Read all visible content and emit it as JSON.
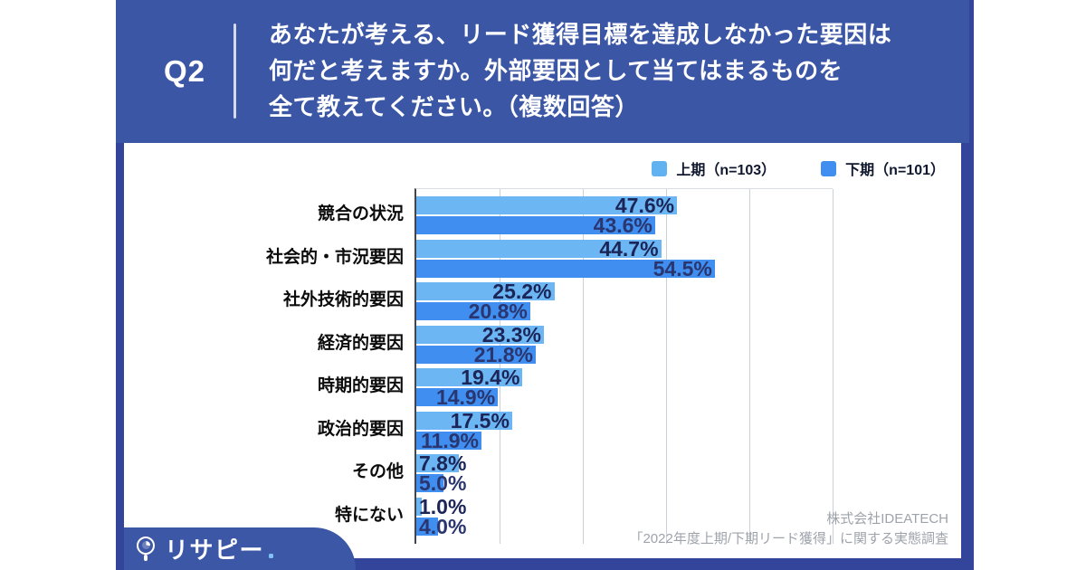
{
  "header": {
    "q_label": "Q2",
    "question_lines": [
      "あなたが考える、リード獲得目標を達成しなかった要因は",
      "何だと考えますか。外部要因として当てはまるものを",
      "全て教えてください。（複数回答）"
    ]
  },
  "legend": {
    "items": [
      {
        "label": "上期（n=103）",
        "color": "#62B2F1"
      },
      {
        "label": "下期（n=101）",
        "color": "#3F8EF0"
      }
    ]
  },
  "chart_data": {
    "type": "bar",
    "orientation": "horizontal",
    "categories": [
      "競合の状況",
      "社会的・市況要因",
      "社外技術的要因",
      "経済的要因",
      "時期的要因",
      "政治的要因",
      "その他",
      "特にない"
    ],
    "series": [
      {
        "name": "上期",
        "n": 103,
        "color": "#6CB6F3",
        "label_color": "#1B2557",
        "values": [
          47.6,
          44.7,
          25.2,
          23.3,
          19.4,
          17.5,
          7.8,
          1.0
        ]
      },
      {
        "name": "下期",
        "n": 101,
        "color": "#3F8EF0",
        "label_color": "#2A366F",
        "values": [
          43.6,
          54.5,
          20.8,
          21.8,
          14.9,
          11.9,
          5.0,
          4.0
        ]
      }
    ],
    "value_suffix": "%",
    "xlim": [
      0,
      76
    ],
    "gridlines_at": [
      15.2,
      30.4,
      45.6,
      60.8,
      76
    ],
    "grid": "vertical",
    "legend_position": "top-right",
    "value_labels": "at-bar-end"
  },
  "source": {
    "line1": "株式会社IDEATECH",
    "line2": "「2022年度上期/下期リード獲得」に関する実態調査"
  },
  "brand": {
    "name": "リサピー"
  },
  "colors": {
    "frame": "#32459A",
    "header": "#3C56A6",
    "badge": "#3D57A7",
    "card": "#FFFFFF",
    "category_text": "#0B0B0B",
    "legend_text": "#10182E",
    "source_text": "#9EA3AB",
    "axis_line": "#41454D",
    "gridline": "#CCD0D7",
    "brand_dot": "#7FC2F5"
  }
}
